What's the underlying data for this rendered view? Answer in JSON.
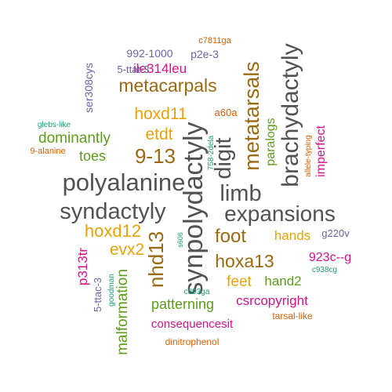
{
  "palette": {
    "gray": "#525252",
    "brown": "#9a6a12",
    "orange": "#d95f02",
    "magenta": "#d6118a",
    "green": "#5e9c1c",
    "teal": "#1b9e77",
    "purple": "#6b63a8",
    "gold": "#e6a309"
  },
  "words": [
    {
      "text": "synpolydactyly",
      "color": "gray"
    },
    {
      "text": "polyalanine",
      "color": "gray"
    },
    {
      "text": "syndactyly",
      "color": "gray"
    },
    {
      "text": "expansions",
      "color": "gray"
    },
    {
      "text": "brachydactyly",
      "color": "gray"
    },
    {
      "text": "limb",
      "color": "gray"
    },
    {
      "text": "digit",
      "color": "gray"
    },
    {
      "text": "metatarsals",
      "color": "brown"
    },
    {
      "text": "metacarpals",
      "color": "brown"
    },
    {
      "text": "9-13",
      "color": "brown"
    },
    {
      "text": "nhd13",
      "color": "brown"
    },
    {
      "text": "foot",
      "color": "brown"
    },
    {
      "text": "hoxa13",
      "color": "brown"
    },
    {
      "text": "hoxd11",
      "color": "gold"
    },
    {
      "text": "etdt",
      "color": "gold"
    },
    {
      "text": "hoxd12",
      "color": "gold"
    },
    {
      "text": "evx2",
      "color": "gold"
    },
    {
      "text": "feet",
      "color": "gold"
    },
    {
      "text": "hands",
      "color": "gold"
    },
    {
      "text": "dominantly",
      "color": "green"
    },
    {
      "text": "toes",
      "color": "green"
    },
    {
      "text": "paralogs",
      "color": "green"
    },
    {
      "text": "malformation",
      "color": "green"
    },
    {
      "text": "patterning",
      "color": "green"
    },
    {
      "text": "hand2",
      "color": "green"
    },
    {
      "text": "ile314leu",
      "color": "magenta"
    },
    {
      "text": "imperfect",
      "color": "magenta"
    },
    {
      "text": "p313tr",
      "color": "magenta"
    },
    {
      "text": "923c--g",
      "color": "magenta"
    },
    {
      "text": "csrcopyright",
      "color": "magenta"
    },
    {
      "text": "consequencesit",
      "color": "magenta"
    },
    {
      "text": "ser308cys",
      "color": "purple"
    },
    {
      "text": "992-1000",
      "color": "purple"
    },
    {
      "text": "p2e-3",
      "color": "purple"
    },
    {
      "text": "5-ttat-3",
      "color": "purple"
    },
    {
      "text": "5-ttac-3",
      "color": "purple"
    },
    {
      "text": "g220v",
      "color": "purple"
    },
    {
      "text": "c7811ga",
      "color": "orange"
    },
    {
      "text": "a60a",
      "color": "orange"
    },
    {
      "text": "9-alanine",
      "color": "orange"
    },
    {
      "text": "allele-typing",
      "color": "orange"
    },
    {
      "text": "tarsal-like",
      "color": "orange"
    },
    {
      "text": "dinitrophenol",
      "color": "orange"
    },
    {
      "text": "glebs-like",
      "color": "teal"
    },
    {
      "text": "758-2dela",
      "color": "teal"
    },
    {
      "text": "s606",
      "color": "teal"
    },
    {
      "text": "goodman",
      "color": "teal"
    },
    {
      "text": "c893ga",
      "color": "teal"
    },
    {
      "text": "c938cg",
      "color": "teal"
    }
  ]
}
